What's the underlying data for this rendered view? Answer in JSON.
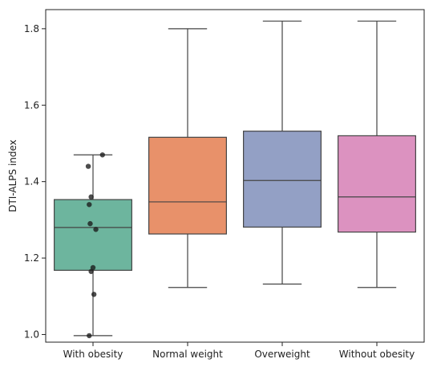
{
  "chart_data": {
    "type": "box",
    "xlabel": "",
    "ylabel": "DTI-ALPS index",
    "ylim": [
      0.98,
      1.85
    ],
    "yticks": [
      1.0,
      1.2,
      1.4,
      1.6,
      1.8
    ],
    "ytick_labels": [
      "1.0",
      "1.2",
      "1.4",
      "1.6",
      "1.8"
    ],
    "grid": false,
    "legend": "none",
    "categories": [
      "With obesity",
      "Normal weight",
      "Overweight",
      "Without obesity"
    ],
    "colors": [
      "#6db59e",
      "#e8916a",
      "#93a0c5",
      "#dc92c0"
    ],
    "boxes": [
      {
        "category": "With obesity",
        "whisker_low": 0.997,
        "q1": 1.168,
        "median": 1.28,
        "q3": 1.353,
        "whisker_high": 1.47
      },
      {
        "category": "Normal weight",
        "whisker_low": 1.123,
        "q1": 1.263,
        "median": 1.347,
        "q3": 1.516,
        "whisker_high": 1.8
      },
      {
        "category": "Overweight",
        "whisker_low": 1.132,
        "q1": 1.281,
        "median": 1.403,
        "q3": 1.532,
        "whisker_high": 1.82
      },
      {
        "category": "Without obesity",
        "whisker_low": 1.123,
        "q1": 1.268,
        "median": 1.36,
        "q3": 1.52,
        "whisker_high": 1.82
      }
    ],
    "points": [
      {
        "category": "With obesity",
        "values": [
          1.47,
          1.44,
          1.36,
          1.34,
          1.29,
          1.275,
          1.175,
          1.165,
          1.105,
          0.997
        ],
        "offsets": [
          0.1,
          -0.05,
          -0.02,
          -0.04,
          -0.03,
          0.03,
          0.0,
          -0.02,
          0.01,
          -0.04
        ]
      }
    ]
  }
}
